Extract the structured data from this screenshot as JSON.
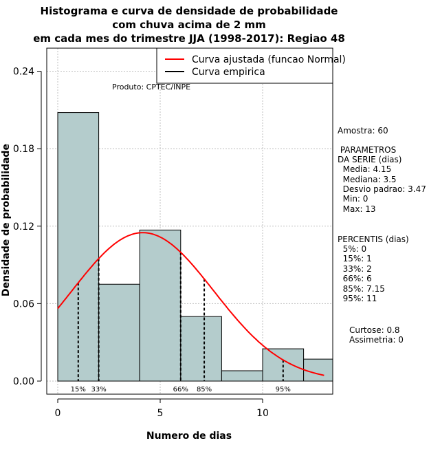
{
  "chart_data": {
    "type": "bar",
    "title": [
      "Histograma e curva de densidade de probabilidade",
      "com chuva acima de 2 mm",
      "em cada mes do trimestre JJA (1998-2017): Regiao 48"
    ],
    "xlabel": "Numero de dias",
    "ylabel": "Densidade de probabilidade",
    "xlim": [
      -0.5,
      13.5
    ],
    "ylim": [
      0,
      0.26
    ],
    "x_ticks": [
      0,
      5,
      10
    ],
    "x_tick_labels": [
      "0",
      "5",
      "10"
    ],
    "y_ticks": [
      0.0,
      0.06,
      0.12,
      0.18,
      0.24
    ],
    "y_tick_labels": [
      "0.00",
      "0.06",
      "0.12",
      "0.18",
      "0.24"
    ],
    "grid": true,
    "bins": [
      {
        "start": 0,
        "end": 2,
        "density": 0.208
      },
      {
        "start": 2,
        "end": 4,
        "density": 0.075
      },
      {
        "start": 4,
        "end": 6,
        "density": 0.117
      },
      {
        "start": 6,
        "end": 8,
        "density": 0.05
      },
      {
        "start": 8,
        "end": 10,
        "density": 0.008
      },
      {
        "start": 10,
        "end": 12,
        "density": 0.025
      },
      {
        "start": 12,
        "end": 14,
        "density": 0.017
      }
    ],
    "fitted_curve": {
      "name": "Curva ajustada (funcao Normal)",
      "mean": 4.15,
      "sd": 3.47,
      "x_range": [
        0,
        13
      ],
      "color": "#ff0000"
    },
    "empirical_curve": {
      "name": "Curva empirica",
      "color": "#000000"
    },
    "percentile_markers": [
      {
        "x": 1,
        "label": "15%"
      },
      {
        "x": 2,
        "label": "33%"
      },
      {
        "x": 6,
        "label": "66%"
      },
      {
        "x": 7.15,
        "label": "85%"
      },
      {
        "x": 11,
        "label": "95%"
      }
    ],
    "legend_position": "top-right",
    "legend": [
      "Curva ajustada (funcao Normal)",
      "Curva empirica"
    ],
    "annotation": "Produto: CPTEC/INPE",
    "bar_color": "#b4cccc"
  },
  "side_panel": [
    "Amostra: 60",
    " PARAMETROS",
    "DA SERIE (dias)",
    "  Media: 4.15",
    "  Mediana: 3.5",
    "  Desvio padrao: 3.47",
    "  Min: 0",
    "  Max: 13",
    "PERCENTIS (dias)",
    "  5%: 0",
    "  15%: 1",
    "  33%: 2",
    "  66%: 6",
    "  85%: 7.15",
    "  95%: 11",
    "Curtose: 0.8",
    "Assimetria: 0"
  ]
}
